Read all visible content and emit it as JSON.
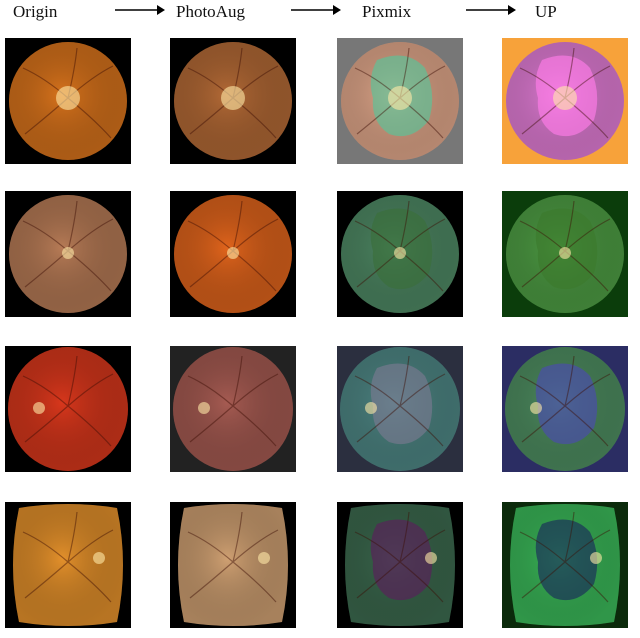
{
  "figure": {
    "columns": [
      "Origin",
      "PhotoAug",
      "Pixmix",
      "UP"
    ],
    "rows": [
      {
        "bg": [
          "#000000",
          "#000000",
          "#777777",
          "#f7a23a"
        ],
        "disc": [
          "#d8731c",
          "#b46a36",
          "#e3a98c",
          "#e47ed8"
        ],
        "overlay": [
          "none",
          "none",
          "#58c49a",
          "#ff7ce8"
        ]
      },
      {
        "bg": [
          "#000000",
          "#000000",
          "#000000",
          "#0b3d0b"
        ],
        "disc": [
          "#b77b56",
          "#e0641c",
          "#4f8a65",
          "#4f9f45"
        ],
        "overlay": [
          "none",
          "none",
          "#3a6e3a",
          "#3c7a2c"
        ]
      },
      {
        "bg": [
          "#000000",
          "#222222",
          "#2b2f3f",
          "#2b2d63"
        ],
        "disc": [
          "#d8371c",
          "#a65b52",
          "#4f8886",
          "#4f8f62"
        ],
        "overlay": [
          "none",
          "none",
          "#7a7a90",
          "#4b4ab0"
        ]
      },
      {
        "bg": [
          "#000000",
          "#000000",
          "#000000",
          "#0b2a0b"
        ],
        "disc": [
          "#e3902b",
          "#cfa072",
          "#3c6a4f",
          "#3bba5a"
        ],
        "overlay": [
          "none",
          "none",
          "#5a1f5a",
          "#1a2a5a"
        ]
      }
    ]
  }
}
